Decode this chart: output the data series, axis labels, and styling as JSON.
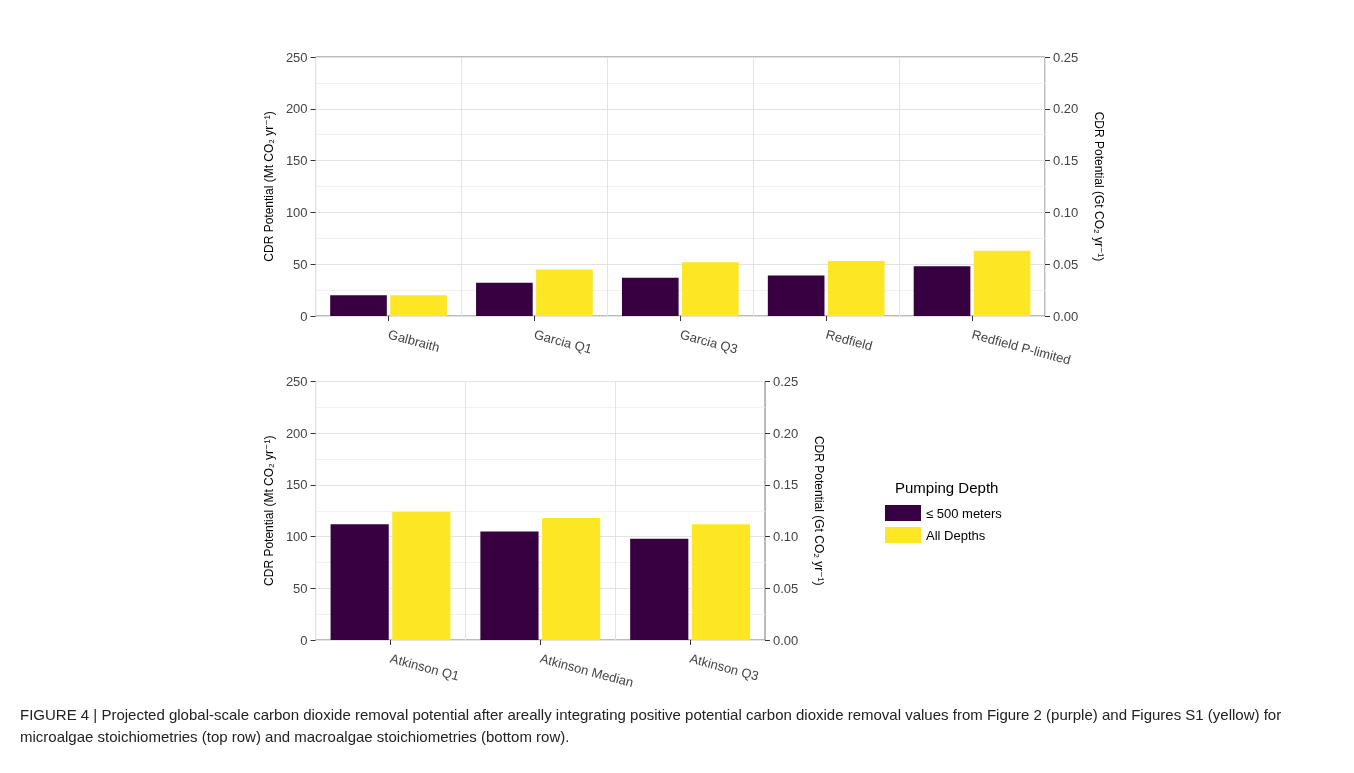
{
  "chart_data": [
    {
      "type": "bar",
      "categories": [
        "Galbraith",
        "Garcia Q1",
        "Garcia Q3",
        "Redfield",
        "Redfield P-limited"
      ],
      "series": [
        {
          "color": "#370040",
          "values": [
            20,
            32,
            37,
            39,
            48
          ]
        },
        {
          "color": "#fde725",
          "values": [
            20,
            45,
            52,
            53,
            63
          ]
        }
      ],
      "ylabel": "CDR Potential (Mt CO₂ yr⁻¹)",
      "y2label": "CDR Potential (Gt CO₂ yr⁻¹)",
      "ylim": [
        0,
        250
      ],
      "yticks": [
        0,
        50,
        100,
        150,
        200,
        250
      ],
      "y2lim": [
        0,
        0.25
      ],
      "y2ticks": [
        {
          "value": 0,
          "label": "0.00"
        },
        {
          "value": 0.05,
          "label": "0.05"
        },
        {
          "value": 0.1,
          "label": "0.10"
        },
        {
          "value": 0.15,
          "label": "0.15"
        },
        {
          "value": 0.2,
          "label": "0.20"
        },
        {
          "value": 0.25,
          "label": "0.25"
        }
      ],
      "grid": true,
      "legend": false
    },
    {
      "type": "bar",
      "categories": [
        "Atkinson Q1",
        "Atkinson Median",
        "Atkinson Q3"
      ],
      "series": [
        {
          "name": "≤ 500 meters",
          "color": "#370040",
          "values": [
            112,
            105,
            98
          ]
        },
        {
          "name": "All Depths",
          "color": "#fde725",
          "values": [
            124,
            118,
            112
          ]
        }
      ],
      "ylabel": "CDR Potential (Mt CO₂ yr⁻¹)",
      "y2label": "CDR Potential (Gt CO₂ yr⁻¹)",
      "ylim": [
        0,
        250
      ],
      "yticks": [
        0,
        50,
        100,
        150,
        200,
        250
      ],
      "y2lim": [
        0,
        0.25
      ],
      "y2ticks": [
        {
          "value": 0,
          "label": "0.00"
        },
        {
          "value": 0.05,
          "label": "0.05"
        },
        {
          "value": 0.1,
          "label": "0.10"
        },
        {
          "value": 0.15,
          "label": "0.15"
        },
        {
          "value": 0.2,
          "label": "0.20"
        },
        {
          "value": 0.25,
          "label": "0.25"
        }
      ],
      "grid": true,
      "legend": "right",
      "legend_title": "Pumping Depth",
      "annotations": [
        "FIGURE 4 | Projected global-scale carbon dioxide removal potential after areally integrating positive potential carbon dioxide removal values from Figure 2 (purple) and Figures S1 (yellow) for microalgae stoichiometries (top row) and macroalgae stoichiometries (bottom row)."
      ]
    }
  ]
}
